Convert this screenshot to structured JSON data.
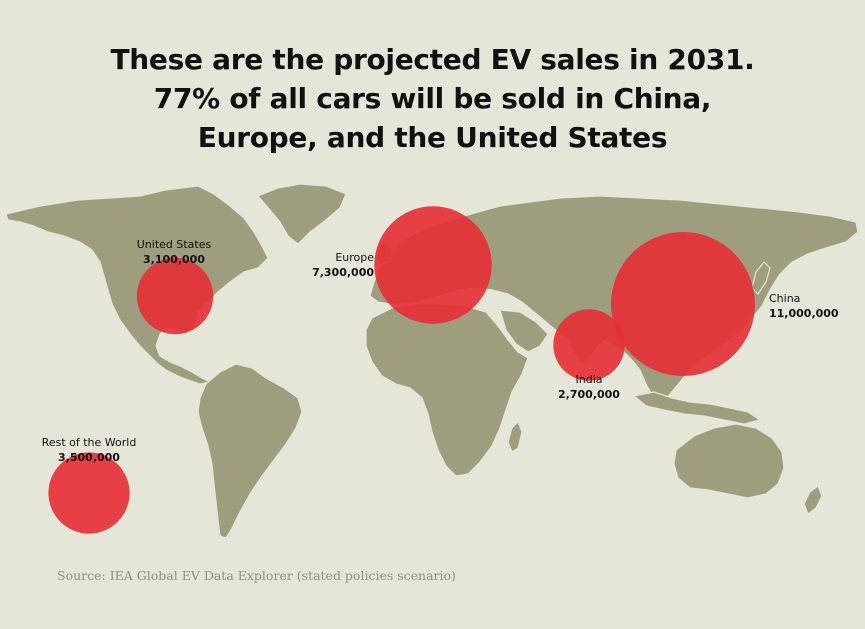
{
  "title": {
    "line1": "These are the projected EV sales in 2031.",
    "line2": "77% of all cars will be sold in China,",
    "line3": "Europe, and the United States"
  },
  "colors": {
    "background": "#e6e6d8",
    "land": "#9e9e7f",
    "bubble": "#e52d36",
    "text": "#111111",
    "source": "#8e8e82"
  },
  "regions": [
    {
      "id": "us",
      "name": "United States",
      "value_label": "3,100,000",
      "sales": 3100000
    },
    {
      "id": "europe",
      "name": "Europe",
      "value_label": "7,300,000",
      "sales": 7300000
    },
    {
      "id": "china",
      "name": "China",
      "value_label": "11,000,000",
      "sales": 11000000
    },
    {
      "id": "india",
      "name": "India",
      "value_label": "2,700,000",
      "sales": 2700000
    },
    {
      "id": "rest",
      "name": "Rest of the World",
      "value_label": "3,500,000",
      "sales": 3500000
    }
  ],
  "source": "Source: IEA Global EV Data Explorer (stated policies scenario)"
}
